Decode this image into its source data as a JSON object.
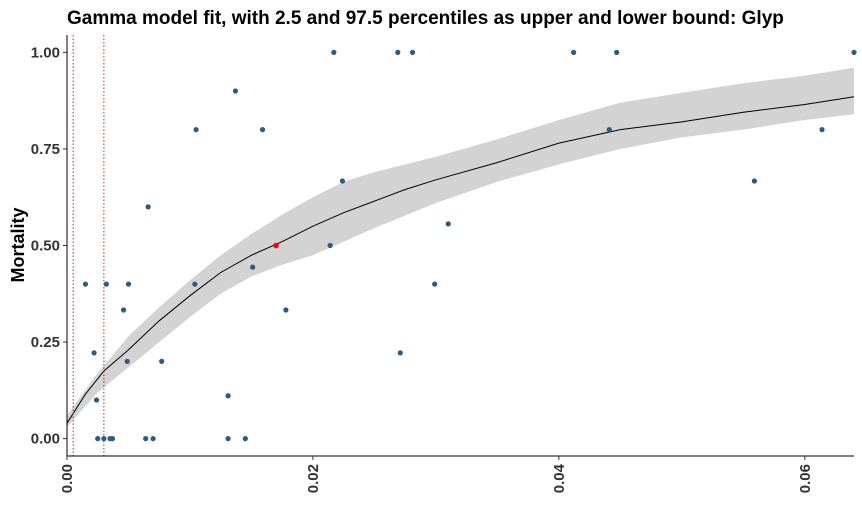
{
  "chart_data": {
    "type": "scatter",
    "title": "Gamma model fit, with 2.5 and 97.5 percentiles as upper and lower bound: Glyp",
    "xlabel": "",
    "ylabel": "Mortality",
    "xlim": [
      0,
      0.064
    ],
    "ylim": [
      -0.045,
      1.045
    ],
    "x_ticks": [
      {
        "value": 0.0,
        "label": "0.00"
      },
      {
        "value": 0.02,
        "label": "0.02"
      },
      {
        "value": 0.04,
        "label": "0.04"
      },
      {
        "value": 0.06,
        "label": "0.06"
      }
    ],
    "y_ticks": [
      {
        "value": 0.0,
        "label": "0.00"
      },
      {
        "value": 0.25,
        "label": "0.25"
      },
      {
        "value": 0.5,
        "label": "0.50"
      },
      {
        "value": 0.75,
        "label": "0.75"
      },
      {
        "value": 1.0,
        "label": "1.00"
      }
    ],
    "grid": false,
    "legend": "none",
    "colors": {
      "points": "#2b5c80",
      "fit_line": "#000000",
      "band": "#d3d3d3",
      "highlight": "#ff0000",
      "vlines": "#cc2222",
      "axis": "#000000"
    },
    "points": [
      {
        "x": 0.0015,
        "y": 0.4
      },
      {
        "x": 0.0022,
        "y": 0.222
      },
      {
        "x": 0.0024,
        "y": 0.1
      },
      {
        "x": 0.0025,
        "y": 0.0
      },
      {
        "x": 0.003,
        "y": 0.0
      },
      {
        "x": 0.0032,
        "y": 0.4
      },
      {
        "x": 0.0035,
        "y": 0.0
      },
      {
        "x": 0.0037,
        "y": 0.0
      },
      {
        "x": 0.0046,
        "y": 0.333
      },
      {
        "x": 0.0049,
        "y": 0.2
      },
      {
        "x": 0.005,
        "y": 0.4
      },
      {
        "x": 0.0064,
        "y": 0.0
      },
      {
        "x": 0.0066,
        "y": 0.6
      },
      {
        "x": 0.007,
        "y": 0.0
      },
      {
        "x": 0.0077,
        "y": 0.2
      },
      {
        "x": 0.0104,
        "y": 0.4
      },
      {
        "x": 0.0105,
        "y": 0.8
      },
      {
        "x": 0.0131,
        "y": 0.111
      },
      {
        "x": 0.0131,
        "y": 0.0
      },
      {
        "x": 0.0137,
        "y": 0.9
      },
      {
        "x": 0.0145,
        "y": 0.0
      },
      {
        "x": 0.0151,
        "y": 0.444
      },
      {
        "x": 0.0159,
        "y": 0.8
      },
      {
        "x": 0.0178,
        "y": 0.333
      },
      {
        "x": 0.0214,
        "y": 0.5
      },
      {
        "x": 0.0217,
        "y": 1.0
      },
      {
        "x": 0.0224,
        "y": 0.667
      },
      {
        "x": 0.0269,
        "y": 1.0
      },
      {
        "x": 0.0271,
        "y": 0.222
      },
      {
        "x": 0.0281,
        "y": 1.0
      },
      {
        "x": 0.0299,
        "y": 0.4
      },
      {
        "x": 0.031,
        "y": 0.556
      },
      {
        "x": 0.0412,
        "y": 1.0
      },
      {
        "x": 0.0441,
        "y": 0.8
      },
      {
        "x": 0.0447,
        "y": 1.0
      },
      {
        "x": 0.0559,
        "y": 0.667
      },
      {
        "x": 0.0614,
        "y": 0.8
      },
      {
        "x": 0.064,
        "y": 1.0
      }
    ],
    "highlight_point": {
      "x": 0.017,
      "y": 0.5
    },
    "fit_curve": [
      {
        "x": 0.0,
        "y": 0.04
      },
      {
        "x": 0.0015,
        "y": 0.115
      },
      {
        "x": 0.003,
        "y": 0.175
      },
      {
        "x": 0.005,
        "y": 0.23
      },
      {
        "x": 0.0075,
        "y": 0.305
      },
      {
        "x": 0.01,
        "y": 0.37
      },
      {
        "x": 0.0125,
        "y": 0.43
      },
      {
        "x": 0.015,
        "y": 0.475
      },
      {
        "x": 0.0175,
        "y": 0.51
      },
      {
        "x": 0.02,
        "y": 0.55
      },
      {
        "x": 0.0225,
        "y": 0.585
      },
      {
        "x": 0.025,
        "y": 0.615
      },
      {
        "x": 0.0275,
        "y": 0.645
      },
      {
        "x": 0.03,
        "y": 0.67
      },
      {
        "x": 0.035,
        "y": 0.715
      },
      {
        "x": 0.04,
        "y": 0.765
      },
      {
        "x": 0.045,
        "y": 0.8
      },
      {
        "x": 0.05,
        "y": 0.82
      },
      {
        "x": 0.055,
        "y": 0.845
      },
      {
        "x": 0.06,
        "y": 0.865
      },
      {
        "x": 0.064,
        "y": 0.885
      }
    ],
    "band_upper": [
      {
        "x": 0.0,
        "y": 0.06
      },
      {
        "x": 0.0025,
        "y": 0.17
      },
      {
        "x": 0.005,
        "y": 0.265
      },
      {
        "x": 0.0075,
        "y": 0.34
      },
      {
        "x": 0.01,
        "y": 0.41
      },
      {
        "x": 0.0125,
        "y": 0.475
      },
      {
        "x": 0.015,
        "y": 0.53
      },
      {
        "x": 0.0175,
        "y": 0.58
      },
      {
        "x": 0.02,
        "y": 0.625
      },
      {
        "x": 0.0225,
        "y": 0.665
      },
      {
        "x": 0.025,
        "y": 0.69
      },
      {
        "x": 0.03,
        "y": 0.73
      },
      {
        "x": 0.035,
        "y": 0.775
      },
      {
        "x": 0.04,
        "y": 0.825
      },
      {
        "x": 0.045,
        "y": 0.87
      },
      {
        "x": 0.05,
        "y": 0.895
      },
      {
        "x": 0.055,
        "y": 0.92
      },
      {
        "x": 0.06,
        "y": 0.94
      },
      {
        "x": 0.064,
        "y": 0.96
      }
    ],
    "band_lower": [
      {
        "x": 0.0,
        "y": 0.03
      },
      {
        "x": 0.0025,
        "y": 0.12
      },
      {
        "x": 0.005,
        "y": 0.185
      },
      {
        "x": 0.0075,
        "y": 0.25
      },
      {
        "x": 0.01,
        "y": 0.315
      },
      {
        "x": 0.0125,
        "y": 0.375
      },
      {
        "x": 0.015,
        "y": 0.42
      },
      {
        "x": 0.0175,
        "y": 0.45
      },
      {
        "x": 0.02,
        "y": 0.475
      },
      {
        "x": 0.0225,
        "y": 0.51
      },
      {
        "x": 0.025,
        "y": 0.545
      },
      {
        "x": 0.03,
        "y": 0.61
      },
      {
        "x": 0.035,
        "y": 0.665
      },
      {
        "x": 0.04,
        "y": 0.71
      },
      {
        "x": 0.045,
        "y": 0.75
      },
      {
        "x": 0.05,
        "y": 0.78
      },
      {
        "x": 0.055,
        "y": 0.8
      },
      {
        "x": 0.06,
        "y": 0.825
      },
      {
        "x": 0.064,
        "y": 0.84
      }
    ],
    "reference_lines_x": [
      0.0005,
      0.003
    ]
  }
}
